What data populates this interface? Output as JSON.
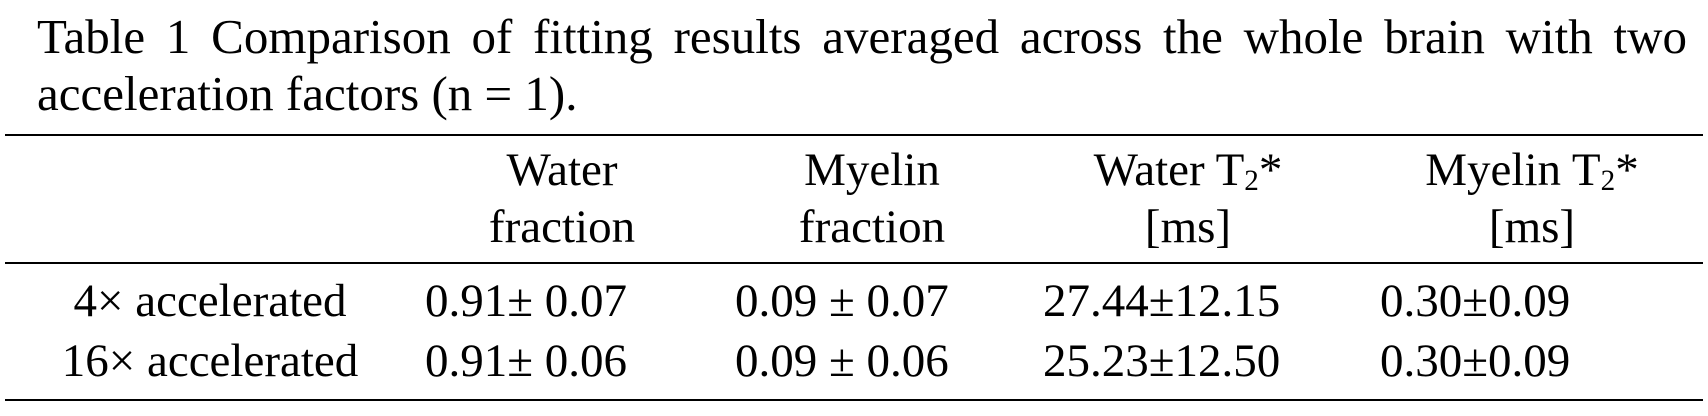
{
  "caption": "Table 1 Comparison of fitting results averaged across the whole brain with two acceleration factors (n = 1).",
  "table": {
    "headers": [
      {
        "line1": "Water",
        "line2": "fraction"
      },
      {
        "line1": "Myelin",
        "line2": "fraction"
      },
      {
        "line1_main": "Water T",
        "line1_sub": "2",
        "line1_suffix": "*",
        "line2": "[ms]"
      },
      {
        "line1_main": "Myelin T",
        "line1_sub": "2",
        "line1_suffix": "*",
        "line2": "[ms]"
      }
    ],
    "rows": [
      {
        "label": "4× accelerated",
        "cells": [
          "0.91± 0.07",
          "0.09 ± 0.07",
          "27.44±12.15",
          "0.30±0.09"
        ]
      },
      {
        "label": "16× accelerated",
        "cells": [
          "0.91± 0.06",
          "0.09 ± 0.06",
          "25.23±12.50",
          "0.30±0.09"
        ]
      }
    ]
  }
}
